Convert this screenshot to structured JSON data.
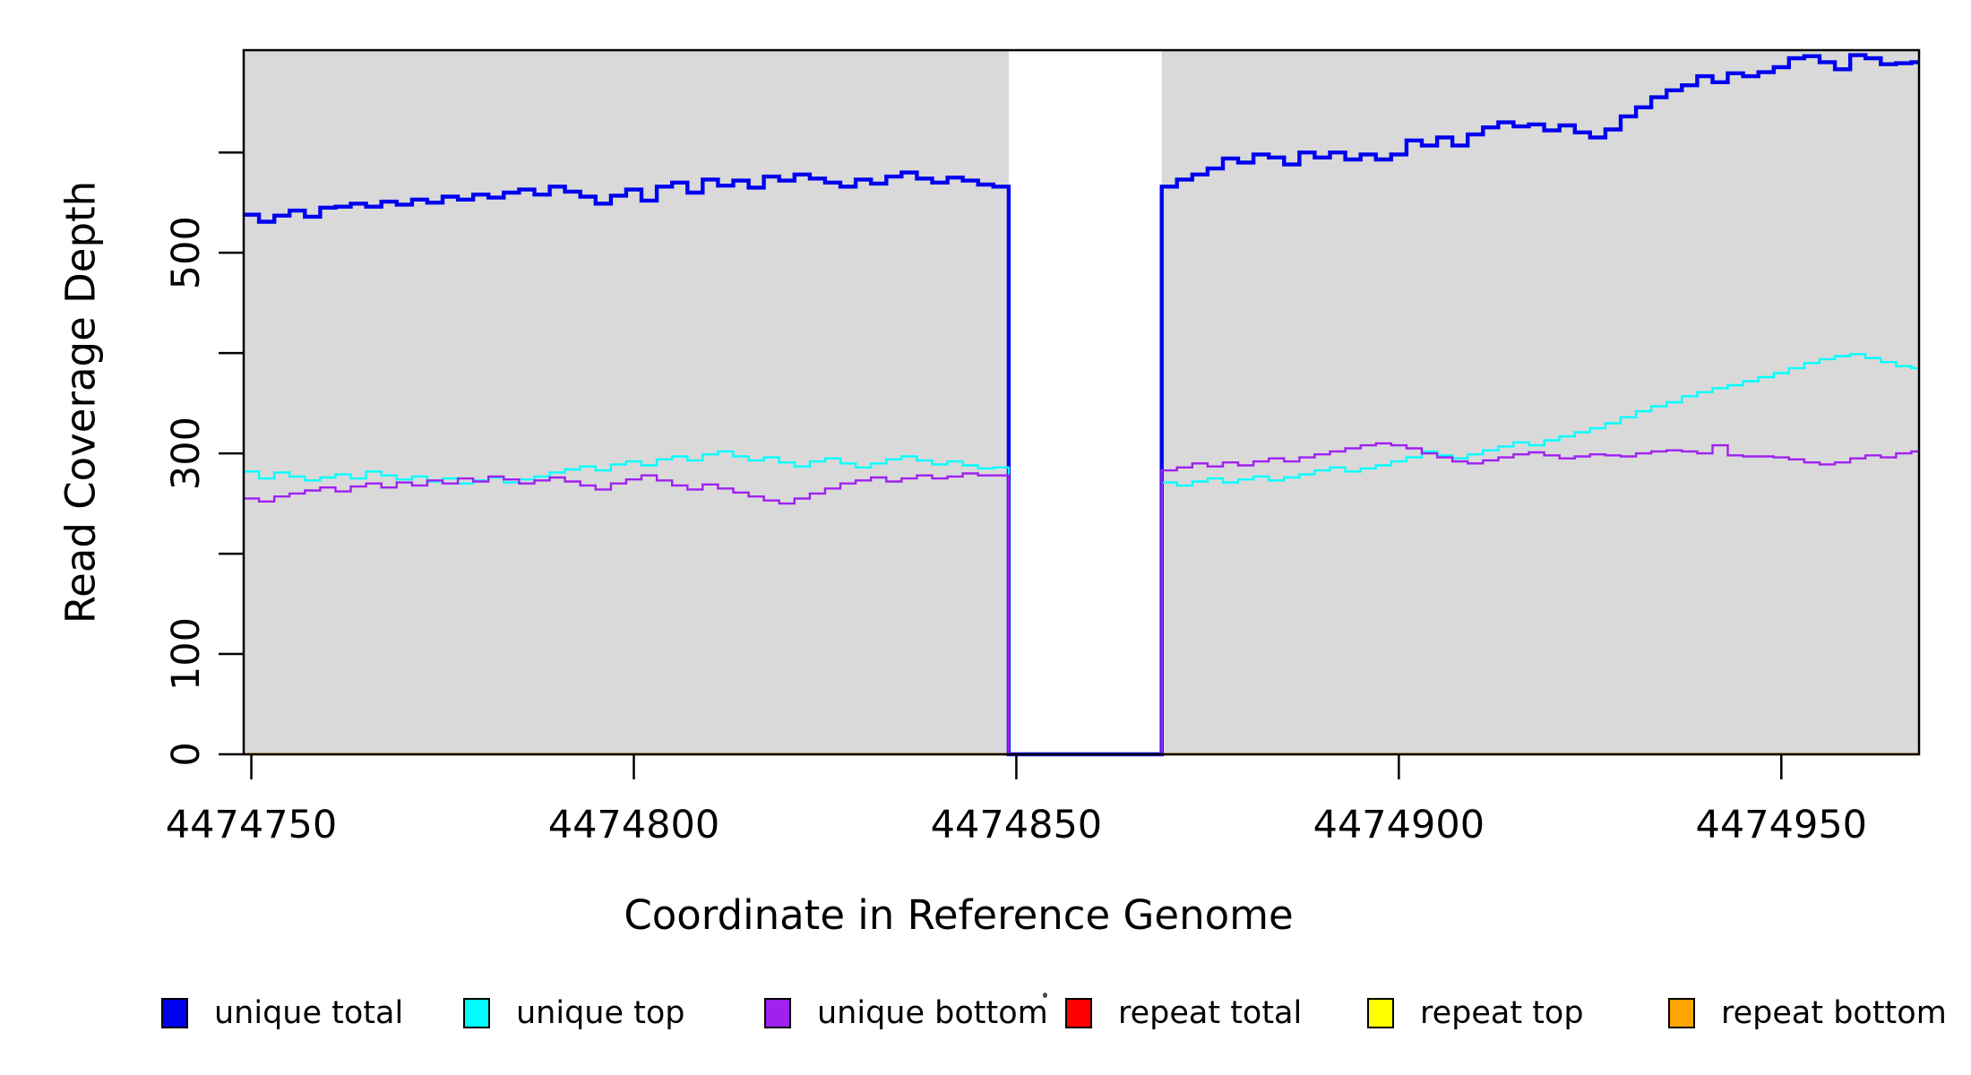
{
  "figure": {
    "background": "#FFFFFF"
  },
  "chart_data": {
    "type": "line",
    "subtype": "step",
    "title": "",
    "xlabel": "Coordinate in Reference Genome",
    "ylabel": "Read Coverage Depth",
    "xlim": [
      4474749,
      4474968
    ],
    "ylim": [
      0,
      702
    ],
    "x_ticks": [
      4474750,
      4474800,
      4474850,
      4474900,
      4474950
    ],
    "y_ticks": [
      0,
      100,
      200,
      300,
      400,
      500,
      600
    ],
    "y_tick_labels": [
      "0",
      "100",
      "",
      "300",
      "",
      "500",
      ""
    ],
    "grid": "off",
    "plot_background": "#D9D9D9",
    "gap_region": {
      "from": 4474849,
      "to": 4474869,
      "color": "#FFFFFF"
    },
    "x_start": 4474749,
    "x_step": 2,
    "series": [
      {
        "name": "repeat total",
        "color": "#FF0000",
        "width": 3,
        "all_zero": true
      },
      {
        "name": "repeat top",
        "color": "#FFFF00",
        "width": 3,
        "all_zero": true
      },
      {
        "name": "repeat bottom",
        "color": "#FFA500",
        "width": 3,
        "all_zero": true
      },
      {
        "name": "unique total",
        "color": "#0000F0",
        "width": 4.4,
        "all_zero": false,
        "values": [
          538,
          531,
          537,
          542,
          536,
          545,
          546,
          549,
          546,
          551,
          548,
          553,
          550,
          556,
          553,
          558,
          555,
          560,
          563,
          558,
          566,
          561,
          556,
          549,
          557,
          563,
          552,
          566,
          570,
          560,
          573,
          567,
          572,
          565,
          576,
          572,
          578,
          574,
          570,
          566,
          573,
          569,
          576,
          580,
          574,
          570,
          575,
          572,
          568,
          566,
          0,
          0,
          0,
          0,
          0,
          0,
          0,
          0,
          0,
          0,
          566,
          573,
          578,
          584,
          594,
          590,
          598,
          595,
          588,
          600,
          595,
          600,
          593,
          598,
          593,
          598,
          612,
          607,
          615,
          607,
          618,
          625,
          630,
          626,
          628,
          622,
          627,
          620,
          615,
          623,
          636,
          645,
          655,
          662,
          667,
          676,
          670,
          679,
          676,
          680,
          685,
          694,
          696,
          690,
          683,
          697,
          694,
          688,
          689,
          690
        ]
      },
      {
        "name": "unique top",
        "color": "#00FFFF",
        "width": 2.4,
        "all_zero": false,
        "values": [
          282,
          275,
          281,
          277,
          273,
          276,
          279,
          275,
          282,
          278,
          274,
          277,
          272,
          275,
          270,
          273,
          276,
          271,
          274,
          277,
          281,
          284,
          287,
          283,
          289,
          292,
          288,
          294,
          297,
          293,
          299,
          302,
          297,
          293,
          296,
          291,
          287,
          292,
          295,
          290,
          286,
          290,
          294,
          297,
          293,
          289,
          292,
          288,
          285,
          286,
          0,
          0,
          0,
          0,
          0,
          0,
          0,
          0,
          0,
          0,
          271,
          268,
          272,
          275,
          271,
          274,
          277,
          273,
          276,
          279,
          283,
          286,
          282,
          285,
          288,
          292,
          296,
          302,
          298,
          295,
          299,
          303,
          307,
          311,
          308,
          313,
          317,
          321,
          325,
          330,
          336,
          342,
          347,
          351,
          357,
          361,
          365,
          368,
          372,
          376,
          380,
          385,
          390,
          394,
          397,
          399,
          395,
          391,
          387,
          385
        ]
      },
      {
        "name": "unique bottom",
        "color": "#A020F0",
        "width": 2.4,
        "all_zero": false,
        "values": [
          255,
          252,
          257,
          260,
          263,
          266,
          262,
          267,
          270,
          266,
          271,
          268,
          273,
          270,
          275,
          272,
          277,
          274,
          270,
          273,
          276,
          272,
          268,
          264,
          270,
          274,
          278,
          273,
          268,
          264,
          269,
          265,
          261,
          257,
          253,
          250,
          255,
          260,
          265,
          270,
          273,
          276,
          272,
          275,
          278,
          275,
          277,
          280,
          278,
          278,
          0,
          0,
          0,
          0,
          0,
          0,
          0,
          0,
          0,
          0,
          283,
          286,
          290,
          287,
          291,
          288,
          292,
          295,
          292,
          296,
          299,
          302,
          305,
          308,
          310,
          308,
          305,
          300,
          296,
          292,
          290,
          293,
          296,
          299,
          301,
          298,
          295,
          297,
          299,
          298,
          297,
          300,
          302,
          303,
          302,
          300,
          308,
          298,
          297,
          297,
          296,
          294,
          291,
          289,
          291,
          295,
          298,
          296,
          300,
          302
        ]
      }
    ],
    "legend": [
      {
        "label": "unique total",
        "color": "#0000F0"
      },
      {
        "label": "unique top",
        "color": "#00FFFF"
      },
      {
        "label": "unique bottom",
        "color": "#A020F0"
      },
      {
        "label": "repeat total",
        "color": "#FF0000"
      },
      {
        "label": "repeat top",
        "color": "#FFFF00"
      },
      {
        "label": "repeat bottom",
        "color": "#FFA500"
      }
    ],
    "legend_position": "bottom"
  }
}
